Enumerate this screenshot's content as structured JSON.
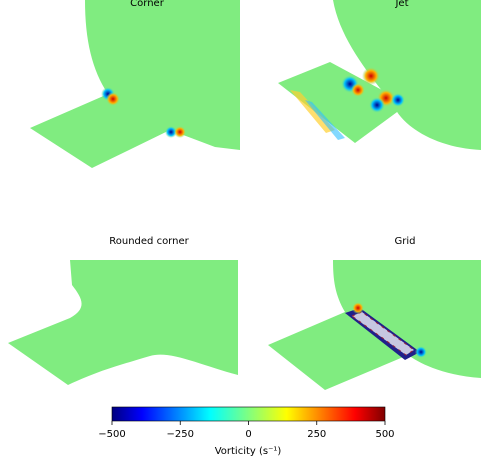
{
  "figure": {
    "panels": [
      {
        "title": "Corner"
      },
      {
        "title": "Jet"
      },
      {
        "title": "Rounded corner"
      },
      {
        "title": "Grid"
      }
    ],
    "colorbar": {
      "range": [
        -500,
        500
      ],
      "ticks": [
        {
          "value": -500,
          "label": "−500"
        },
        {
          "value": -250,
          "label": "−250"
        },
        0,
        250,
        500
      ],
      "label": "Vorticity (s⁻¹)"
    }
  }
}
